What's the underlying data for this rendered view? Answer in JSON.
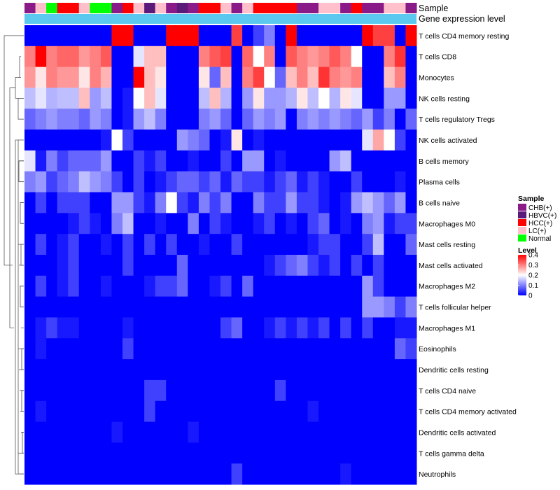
{
  "chart_data": {
    "type": "heatmap",
    "annotation_labels": [
      "Sample",
      "Gene expression level"
    ],
    "sample_groups": [
      "CHB(+)",
      "HBVC(+)",
      "HCC(+)",
      "LC(+)",
      "Normal"
    ],
    "sample_colors": {
      "CHB(+)": "#8B1A89",
      "HBVC(+)": "#5B1A7A",
      "HCC(+)": "#FF0000",
      "LC(+)": "#FFC0CB",
      "Normal": "#00FF00"
    },
    "expression_bar_color": "#5BC8F0",
    "columns": [
      "CHB(+)",
      "LC(+)",
      "Normal",
      "HCC(+)",
      "HCC(+)",
      "LC(+)",
      "Normal",
      "Normal",
      "CHB(+)",
      "HCC(+)",
      "LC(+)",
      "HBVC(+)",
      "LC(+)",
      "CHB(+)",
      "HBVC(+)",
      "CHB(+)",
      "HCC(+)",
      "HCC(+)",
      "LC(+)",
      "CHB(+)",
      "LC(+)",
      "HCC(+)",
      "HCC(+)",
      "HCC(+)",
      "HCC(+)",
      "CHB(+)",
      "CHB(+)",
      "LC(+)",
      "LC(+)",
      "CHB(+)",
      "HCC(+)",
      "CHB(+)",
      "CHB(+)",
      "LC(+)",
      "LC(+)",
      "CHB(+)"
    ],
    "rows": [
      "T cells CD4 memory resting",
      "T cells CD8",
      "Monocytes",
      "NK cells resting",
      "T cells regulatory  Tregs",
      "NK cells activated",
      "B cells memory",
      "Plasma cells",
      "B cells naive",
      "Macrophages M0",
      "Mast cells resting",
      "Mast cells activated",
      "Macrophages M2",
      "T cells follicular helper",
      "Macrophages M1",
      "Eosinophils",
      "Dendritic cells resting",
      "T cells CD4 naive",
      "T cells CD4 memory activated",
      "Dendritic cells activated",
      "T cells gamma delta",
      "Neutrophils"
    ],
    "values": [
      [
        0,
        0,
        0,
        0,
        0,
        0,
        0,
        0,
        0.4,
        0.4,
        0,
        0,
        0,
        0.4,
        0.4,
        0.4,
        0,
        0,
        0,
        0.35,
        0,
        0.05,
        0.1,
        0,
        0.4,
        0,
        0,
        0,
        0,
        0,
        0,
        0.4,
        0.35,
        0.35,
        0,
        0.4
      ],
      [
        0.3,
        0.4,
        0.3,
        0.32,
        0.32,
        0.28,
        0.3,
        0.33,
        0,
        0,
        0.18,
        0.25,
        0.25,
        0,
        0,
        0,
        0.3,
        0.33,
        0.35,
        0,
        0.32,
        0.2,
        0.3,
        0,
        0.33,
        0.3,
        0.28,
        0.3,
        0.33,
        0.3,
        0.2,
        0,
        0,
        0.3,
        0.36,
        0
      ],
      [
        0.28,
        0.22,
        0.3,
        0.28,
        0.28,
        0.22,
        0.3,
        0.26,
        0,
        0,
        0.4,
        0.25,
        0.22,
        0,
        0,
        0,
        0.22,
        0.08,
        0.25,
        0,
        0.3,
        0.35,
        0.2,
        0.08,
        0.25,
        0.3,
        0.25,
        0.36,
        0.3,
        0.28,
        0.3,
        0,
        0,
        0.25,
        0.3,
        0
      ],
      [
        0.15,
        0.18,
        0.14,
        0.15,
        0.15,
        0.25,
        0.12,
        0.15,
        0,
        0.02,
        0.2,
        0.25,
        0.18,
        0,
        0,
        0,
        0.15,
        0.25,
        0.14,
        0,
        0.12,
        0.22,
        0.12,
        0.12,
        0.14,
        0.22,
        0.15,
        0.2,
        0.14,
        0.22,
        0.18,
        0,
        0,
        0.12,
        0.12,
        0
      ],
      [
        0.08,
        0.1,
        0.12,
        0.1,
        0.1,
        0.08,
        0.12,
        0.1,
        0,
        0.02,
        0.12,
        0.15,
        0.1,
        0,
        0,
        0,
        0.1,
        0.12,
        0.08,
        0,
        0.08,
        0.12,
        0.1,
        0.12,
        0,
        0.1,
        0.12,
        0.1,
        0.12,
        0.1,
        0.08,
        0.12,
        0.05,
        0.1,
        0,
        0.08
      ],
      [
        0,
        0,
        0,
        0,
        0,
        0,
        0,
        0.02,
        0.2,
        0.05,
        0,
        0,
        0,
        0,
        0.12,
        0.1,
        0.08,
        0,
        0.02,
        0.22,
        0,
        0.02,
        0,
        0,
        0,
        0,
        0,
        0,
        0,
        0,
        0,
        0.18,
        0.27,
        0.2,
        0.05,
        0
      ],
      [
        0.18,
        0.02,
        0.1,
        0.05,
        0.08,
        0.08,
        0.08,
        0.12,
        0,
        0,
        0.05,
        0.02,
        0.05,
        0,
        0,
        0.02,
        0,
        0,
        0.05,
        0,
        0.12,
        0.12,
        0,
        0.02,
        0,
        0,
        0,
        0,
        0.12,
        0.15,
        0,
        0,
        0,
        0,
        0,
        0
      ],
      [
        0.1,
        0.12,
        0.05,
        0.08,
        0.1,
        0.15,
        0.12,
        0.1,
        0.05,
        0,
        0.05,
        0,
        0.02,
        0.05,
        0.08,
        0.08,
        0.05,
        0.08,
        0.02,
        0.08,
        0.05,
        0.05,
        0.02,
        0.05,
        0.08,
        0.02,
        0.05,
        0.02,
        0,
        0,
        0.05,
        0,
        0,
        0,
        0.02,
        0
      ],
      [
        0,
        0.05,
        0,
        0.05,
        0.05,
        0.05,
        0,
        0,
        0.12,
        0.12,
        0.05,
        0.02,
        0.1,
        0.2,
        0.05,
        0.02,
        0.1,
        0.05,
        0.1,
        0,
        0,
        0.1,
        0.05,
        0.05,
        0.12,
        0.05,
        0.05,
        0.02,
        0,
        0.02,
        0.12,
        0.15,
        0.12,
        0.08,
        0.12,
        0
      ],
      [
        0,
        0,
        0,
        0,
        0.02,
        0.05,
        0.02,
        0,
        0.1,
        0.15,
        0,
        0,
        0.02,
        0,
        0,
        0.1,
        0,
        0.05,
        0.02,
        0,
        0,
        0.02,
        0.05,
        0,
        0.02,
        0,
        0.05,
        0.08,
        0,
        0.02,
        0,
        0.1,
        0.12,
        0.02,
        0.05,
        0.05
      ],
      [
        0,
        0.05,
        0,
        0.02,
        0.05,
        0,
        0,
        0.02,
        0,
        0.05,
        0,
        0.05,
        0,
        0.05,
        0,
        0,
        0.02,
        0,
        0,
        0.05,
        0,
        0,
        0,
        0,
        0,
        0,
        0.02,
        0.05,
        0.05,
        0,
        0,
        0.05,
        0.15,
        0,
        0,
        0.08
      ],
      [
        0,
        0,
        0,
        0.02,
        0.05,
        0,
        0,
        0,
        0,
        0.05,
        0,
        0,
        0,
        0,
        0.08,
        0,
        0,
        0,
        0,
        0,
        0,
        0,
        0.02,
        0.05,
        0.08,
        0.1,
        0.05,
        0.02,
        0.05,
        0,
        0.05,
        0,
        0.05,
        0,
        0,
        0
      ],
      [
        0,
        0.05,
        0,
        0.02,
        0.05,
        0,
        0,
        0.02,
        0,
        0,
        0,
        0.02,
        0.05,
        0.05,
        0.08,
        0,
        0,
        0.02,
        0.05,
        0,
        0.08,
        0,
        0,
        0,
        0,
        0,
        0,
        0,
        0,
        0,
        0,
        0.12,
        0.05,
        0,
        0,
        0
      ],
      [
        0,
        0,
        0,
        0,
        0,
        0,
        0,
        0,
        0,
        0,
        0,
        0,
        0,
        0,
        0,
        0,
        0,
        0,
        0,
        0,
        0,
        0,
        0,
        0,
        0,
        0,
        0,
        0,
        0,
        0,
        0,
        0.12,
        0.12,
        0.1,
        0.05,
        0.1
      ],
      [
        0,
        0.02,
        0.05,
        0.02,
        0.02,
        0,
        0,
        0,
        0,
        0.02,
        0,
        0,
        0,
        0,
        0,
        0,
        0,
        0,
        0.05,
        0.08,
        0,
        0,
        0.02,
        0.05,
        0.02,
        0.05,
        0.02,
        0.05,
        0,
        0.05,
        0,
        0.05,
        0,
        0,
        0.02,
        0.02
      ],
      [
        0,
        0.02,
        0,
        0,
        0,
        0,
        0,
        0,
        0,
        0.05,
        0,
        0,
        0,
        0,
        0,
        0,
        0,
        0,
        0,
        0,
        0,
        0,
        0,
        0,
        0,
        0,
        0,
        0,
        0,
        0,
        0,
        0,
        0,
        0,
        0.08,
        0.05
      ],
      [
        0,
        0,
        0,
        0,
        0,
        0,
        0,
        0,
        0,
        0,
        0,
        0,
        0,
        0,
        0,
        0,
        0,
        0,
        0,
        0,
        0,
        0,
        0,
        0,
        0,
        0,
        0,
        0,
        0,
        0,
        0,
        0,
        0,
        0,
        0,
        0
      ],
      [
        0,
        0,
        0,
        0,
        0,
        0,
        0,
        0,
        0,
        0,
        0,
        0.05,
        0.05,
        0,
        0,
        0,
        0,
        0,
        0,
        0,
        0,
        0,
        0,
        0.05,
        0,
        0,
        0,
        0,
        0,
        0,
        0,
        0,
        0,
        0,
        0,
        0
      ],
      [
        0,
        0.02,
        0,
        0,
        0,
        0,
        0,
        0,
        0,
        0,
        0,
        0.05,
        0,
        0,
        0,
        0,
        0,
        0,
        0,
        0,
        0,
        0,
        0,
        0,
        0,
        0,
        0.02,
        0,
        0,
        0,
        0,
        0,
        0,
        0,
        0,
        0
      ],
      [
        0,
        0,
        0,
        0,
        0,
        0,
        0,
        0,
        0.02,
        0,
        0,
        0,
        0,
        0,
        0,
        0.02,
        0,
        0,
        0,
        0,
        0,
        0,
        0,
        0,
        0,
        0,
        0,
        0,
        0,
        0,
        0,
        0,
        0,
        0,
        0,
        0
      ],
      [
        0,
        0,
        0,
        0,
        0,
        0,
        0,
        0,
        0,
        0,
        0,
        0,
        0,
        0,
        0,
        0,
        0,
        0,
        0,
        0,
        0,
        0,
        0,
        0,
        0,
        0,
        0,
        0,
        0,
        0,
        0,
        0,
        0,
        0,
        0,
        0
      ],
      [
        0,
        0,
        0,
        0,
        0,
        0,
        0,
        0,
        0,
        0,
        0,
        0,
        0,
        0,
        0,
        0,
        0,
        0,
        0,
        0.05,
        0,
        0,
        0,
        0,
        0,
        0,
        0,
        0,
        0,
        0.02,
        0,
        0,
        0,
        0,
        0,
        0
      ]
    ],
    "legend": {
      "sample_title": "Sample",
      "level_title": "Level",
      "level_ticks": [
        "0.4",
        "0.3",
        "0.2",
        "0.1",
        "0"
      ],
      "level_tick_values": [
        0.4,
        0.3,
        0.2,
        0.1,
        0
      ],
      "scale_range": [
        0,
        0.4
      ],
      "scale_colors": {
        "low": "#0000FF",
        "mid": "#FFFFFF",
        "high": "#FF0000"
      }
    }
  }
}
